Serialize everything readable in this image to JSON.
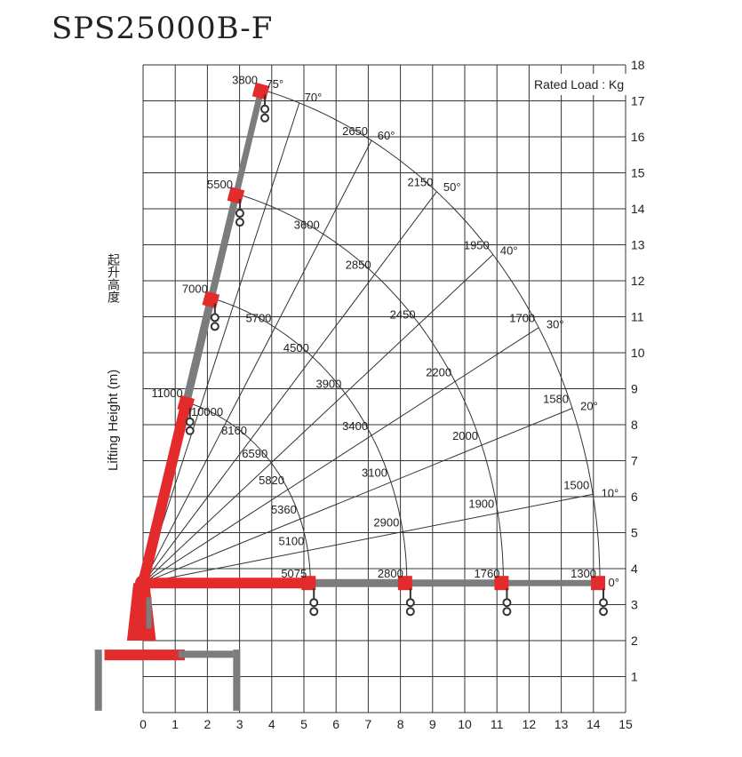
{
  "title": "SPS25000B-F",
  "legend_label": "Rated Load : Kg",
  "y_axis_label_cn": "起升高度",
  "y_axis_label_en": "Lifting Height (m)",
  "x_ticks": [
    "0",
    "1",
    "2",
    "3",
    "4",
    "5",
    "6",
    "7",
    "8",
    "9",
    "10",
    "11",
    "12",
    "13",
    "14",
    "15"
  ],
  "y_ticks": [
    "1",
    "2",
    "3",
    "4",
    "5",
    "6",
    "7",
    "8",
    "9",
    "10",
    "11",
    "12",
    "13",
    "14",
    "15",
    "16",
    "17",
    "18"
  ],
  "angles": [
    {
      "deg": 0,
      "label": "0°"
    },
    {
      "deg": 10,
      "label": "10°"
    },
    {
      "deg": 20,
      "label": "20°"
    },
    {
      "deg": 30,
      "label": "30°"
    },
    {
      "deg": 40,
      "label": "40°"
    },
    {
      "deg": 50,
      "label": "50°"
    },
    {
      "deg": 60,
      "label": "60°"
    },
    {
      "deg": 70,
      "label": "70°"
    },
    {
      "deg": 75,
      "label": "75°"
    }
  ],
  "chart_data": {
    "type": "load chart",
    "x_range": [
      0,
      15
    ],
    "y_range": [
      0,
      18
    ],
    "boom_sections": [
      {
        "boom_length_m": 5.2,
        "loads": [
          {
            "angle": 0,
            "load": "5075"
          },
          {
            "angle": 10,
            "load": "5100"
          },
          {
            "angle": 20,
            "load": "5360"
          },
          {
            "angle": 30,
            "load": "5820"
          },
          {
            "angle": 40,
            "load": "6590"
          },
          {
            "angle": 50,
            "load": "8160"
          },
          {
            "angle": 60,
            "load": "10000"
          },
          {
            "angle": 75,
            "load": "11000"
          }
        ]
      },
      {
        "boom_length_m": 8.2,
        "loads": [
          {
            "angle": 0,
            "load": "2800"
          },
          {
            "angle": 10,
            "load": "2900"
          },
          {
            "angle": 20,
            "load": "3100"
          },
          {
            "angle": 30,
            "load": "3400"
          },
          {
            "angle": 40,
            "load": "3900"
          },
          {
            "angle": 50,
            "load": "4500"
          },
          {
            "angle": 60,
            "load": "5700"
          },
          {
            "angle": 75,
            "load": "7000"
          }
        ]
      },
      {
        "boom_length_m": 11.2,
        "loads": [
          {
            "angle": 0,
            "load": "1760"
          },
          {
            "angle": 10,
            "load": "1900"
          },
          {
            "angle": 20,
            "load": "2000"
          },
          {
            "angle": 30,
            "load": "2200"
          },
          {
            "angle": 40,
            "load": "2450"
          },
          {
            "angle": 50,
            "load": "2850"
          },
          {
            "angle": 60,
            "load": "3600"
          },
          {
            "angle": 75,
            "load": "5500"
          }
        ]
      },
      {
        "boom_length_m": 14.2,
        "loads": [
          {
            "angle": 0,
            "load": "1300"
          },
          {
            "angle": 10,
            "load": "1500"
          },
          {
            "angle": 20,
            "load": "1580"
          },
          {
            "angle": 30,
            "load": "1700"
          },
          {
            "angle": 40,
            "load": "1950"
          },
          {
            "angle": 50,
            "load": "2150"
          },
          {
            "angle": 60,
            "load": "2650"
          },
          {
            "angle": 75,
            "load": "3800"
          }
        ]
      }
    ]
  },
  "colors": {
    "boom_red": "#e32b2b",
    "boom_grey": "#7c7c7c",
    "grid": "#333333"
  }
}
